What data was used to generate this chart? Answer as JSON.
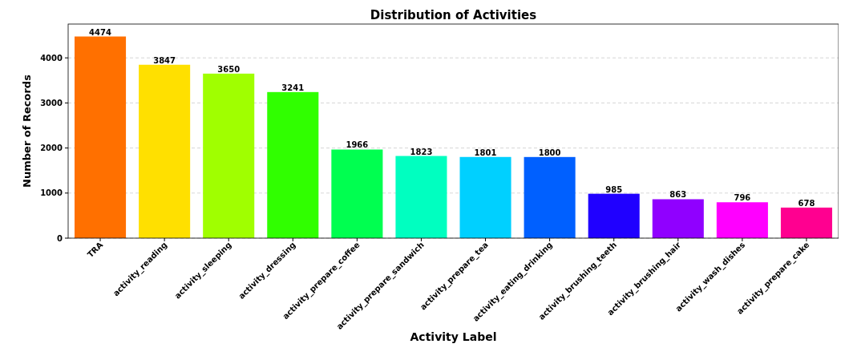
{
  "chart_data": {
    "type": "bar",
    "title": "Distribution of Activities",
    "xlabel": "Activity Label",
    "ylabel": "Number of Records",
    "categories": [
      "TRA",
      "activity_reading",
      "activity_sleeping",
      "activity_dressing",
      "activity_prepare_coffee",
      "activity_prepare_sandwich",
      "activity_prepare_tea",
      "activity_eating_drinking",
      "activity_brushing_teeth",
      "activity_brushing_hair",
      "activity_wash_dishes",
      "activity_prepare_cake"
    ],
    "values": [
      4474,
      3847,
      3650,
      3241,
      1966,
      1823,
      1801,
      1800,
      985,
      863,
      796,
      678
    ],
    "colors": [
      "#ff7000",
      "#ffe000",
      "#a0ff00",
      "#30ff00",
      "#00ff50",
      "#00ffc0",
      "#00d0ff",
      "#0060ff",
      "#2000ff",
      "#9000ff",
      "#ff00ff",
      "#ff0090"
    ],
    "ylim": [
      0,
      4750
    ],
    "yticks": [
      0,
      1000,
      2000,
      3000,
      4000
    ],
    "grid": "y",
    "data_labels": true
  }
}
